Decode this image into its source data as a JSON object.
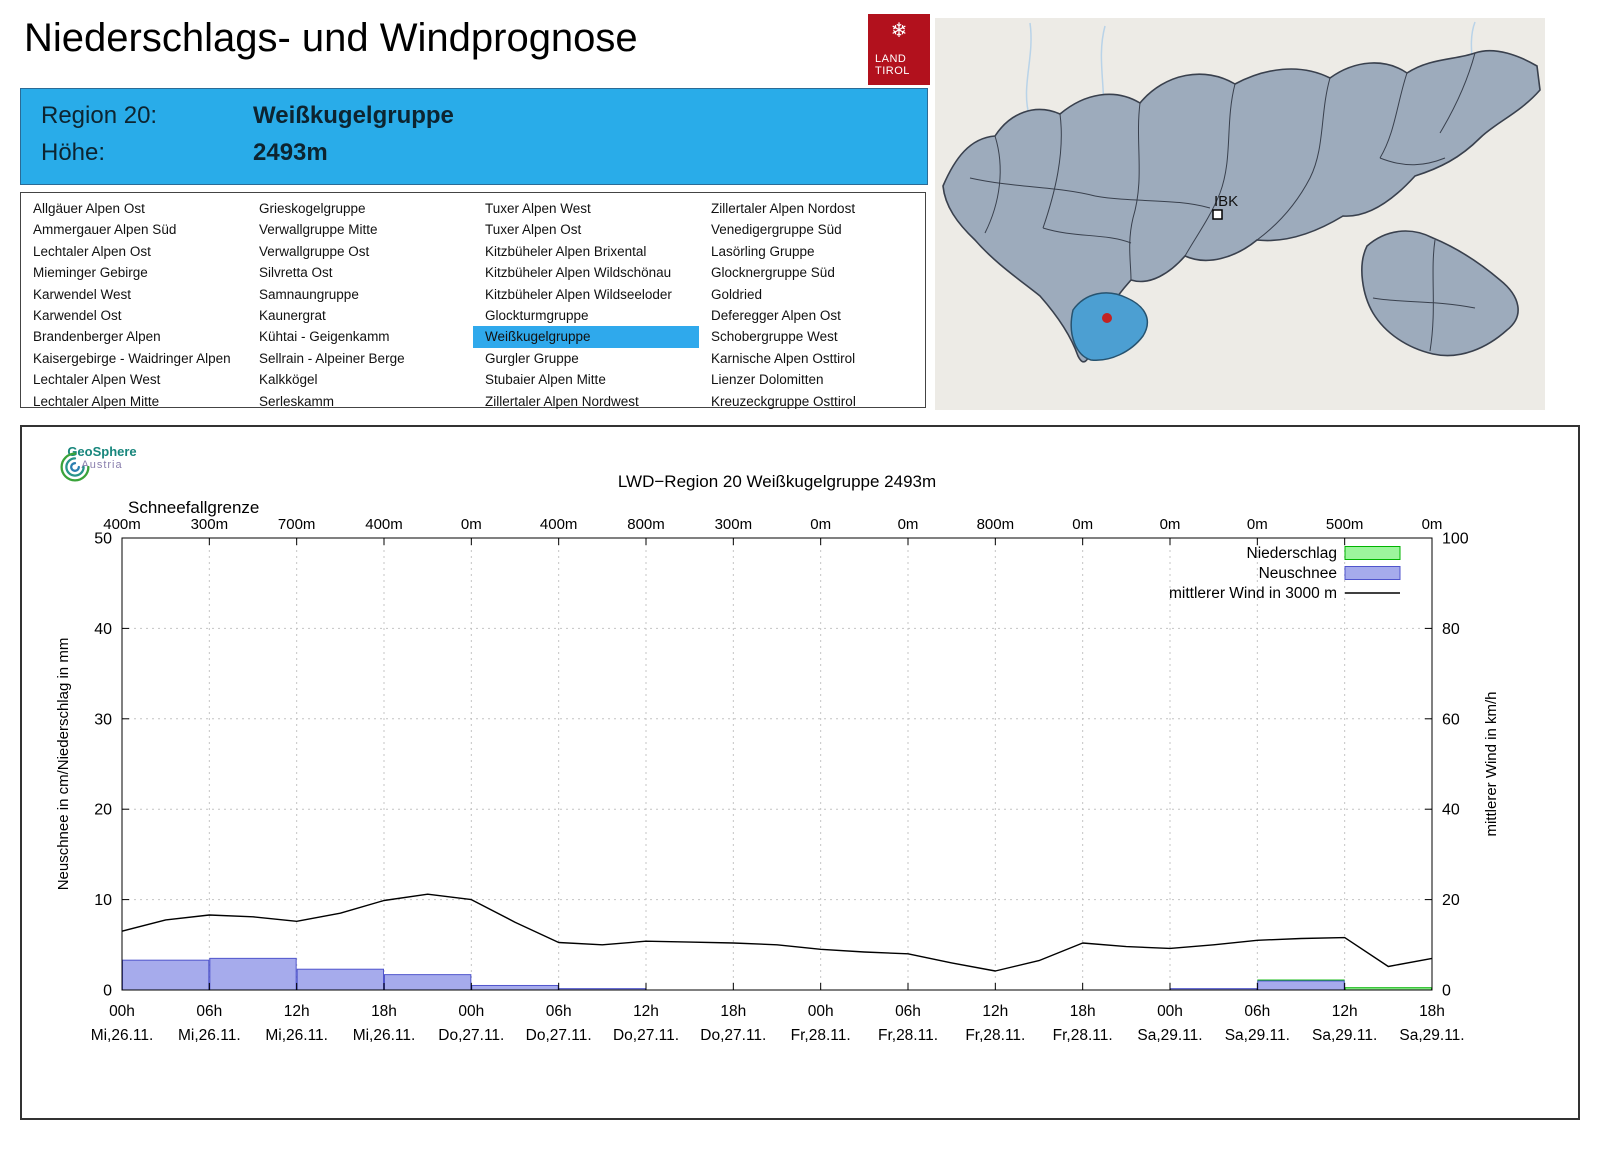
{
  "header": {
    "title": "Niederschlags- und Windprognose",
    "logo_flake": "❄",
    "logo_line1": "LAND",
    "logo_line2": "TIROL"
  },
  "map": {
    "ibk_label": "IBK",
    "highlight_color": "#4c9fd2"
  },
  "region_header": {
    "region_label": "Region 20:",
    "region_name": "Weißkugelgruppe",
    "altitude_label": "Höhe:",
    "altitude_value": "2493m"
  },
  "region_list": {
    "selected": "Weißkugelgruppe",
    "columns": [
      [
        "Allgäuer Alpen Ost",
        "Ammergauer Alpen Süd",
        "Lechtaler Alpen Ost",
        "Mieminger Gebirge",
        "Karwendel West",
        "Karwendel Ost",
        "Brandenberger Alpen",
        "Kaisergebirge - Waidringer Alpen",
        "Lechtaler Alpen West",
        "Lechtaler Alpen Mitte"
      ],
      [
        "Grieskogelgruppe",
        "Verwallgruppe Mitte",
        "Verwallgruppe Ost",
        "Silvretta Ost",
        "Samnaungruppe",
        "Kaunergrat",
        "Kühtai - Geigenkamm",
        "Sellrain - Alpeiner Berge",
        "Kalkkögel",
        "Serleskamm"
      ],
      [
        "Tuxer Alpen West",
        "Tuxer Alpen Ost",
        "Kitzbüheler Alpen Brixental",
        "Kitzbüheler Alpen Wildschönau",
        "Kitzbüheler Alpen Wildseeloder",
        "Glockturmgruppe",
        "Weißkugelgruppe",
        "Gurgler Gruppe",
        "Stubaier Alpen Mitte",
        "Zillertaler Alpen Nordwest"
      ],
      [
        "Zillertaler Alpen Nordost",
        "Venedigergruppe Süd",
        "Lasörling Gruppe",
        "Glocknergruppe Süd",
        "Goldried",
        "Deferegger Alpen Ost",
        "Schobergruppe West",
        "Karnische Alpen Osttirol",
        "Lienzer Dolomitten",
        "Kreuzeckgruppe Osttirol"
      ]
    ]
  },
  "geosphere": {
    "name": "GeoSphere",
    "sub": "Austria"
  },
  "chart_data": {
    "type": "bar",
    "title": "LWD−Region 20 Weißkugelgruppe 2493m",
    "snowline": {
      "label": "Schneefallgrenze",
      "values": [
        "400m",
        "300m",
        "700m",
        "400m",
        "0m",
        "400m",
        "800m",
        "300m",
        "0m",
        "0m",
        "800m",
        "0m",
        "0m",
        "0m",
        "500m",
        "0m"
      ]
    },
    "x": {
      "hours_span": 90,
      "tick_step_h": 6,
      "tick_hours": [
        "00h",
        "06h",
        "12h",
        "18h",
        "00h",
        "06h",
        "12h",
        "18h",
        "00h",
        "06h",
        "12h",
        "18h",
        "00h",
        "06h",
        "12h",
        "18h"
      ],
      "tick_days": [
        "Mi,26.11.",
        "Mi,26.11.",
        "Mi,26.11.",
        "Mi,26.11.",
        "Do,27.11.",
        "Do,27.11.",
        "Do,27.11.",
        "Do,27.11.",
        "Fr,28.11.",
        "Fr,28.11.",
        "Fr,28.11.",
        "Fr,28.11.",
        "Sa,29.11.",
        "Sa,29.11.",
        "Sa,29.11.",
        "Sa,29.11."
      ]
    },
    "axes": {
      "left_label": "Neuschnee in cm/Niederschlag in mm",
      "right_label": "mittlerer Wind in km/h",
      "left_range": [
        0,
        50
      ],
      "right_range": [
        0,
        100
      ],
      "left_ticks": [
        0,
        10,
        20,
        30,
        40,
        50
      ],
      "right_ticks": [
        0,
        20,
        40,
        60,
        80,
        100
      ],
      "grid": true
    },
    "legend": [
      {
        "label": "Niederschlag",
        "swatch": "box",
        "fill": "#9cf59c",
        "stroke": "#00b400"
      },
      {
        "label": "Neuschnee",
        "swatch": "box",
        "fill": "#a6abec",
        "stroke": "#5055cc"
      },
      {
        "label": "mittlerer Wind in 3000 m",
        "swatch": "line",
        "stroke": "#000000"
      }
    ],
    "series": [
      {
        "name": "Niederschlag",
        "unit": "mm",
        "interval_h": 6,
        "values": [
          0,
          0,
          0,
          0,
          0,
          0,
          0,
          0,
          0,
          0,
          0,
          0,
          0.1,
          1.1,
          0.25
        ]
      },
      {
        "name": "Neuschnee",
        "unit": "cm",
        "interval_h": 6,
        "values": [
          3.3,
          3.5,
          2.3,
          1.7,
          0.5,
          0.15,
          0,
          0,
          0,
          0,
          0,
          0,
          0.15,
          1.0,
          0
        ]
      },
      {
        "name": "mittlerer Wind in 3000 m",
        "unit": "km/h",
        "interval_h": 3,
        "values": [
          13,
          15.5,
          16.6,
          16.2,
          15.2,
          17,
          19.8,
          21.2,
          20,
          15,
          10.5,
          10,
          10.8,
          10.6,
          10.4,
          10,
          9,
          8.4,
          8,
          6,
          4.2,
          6.5,
          10.4,
          9.6,
          9.2,
          10,
          11,
          11.4,
          11.6,
          5.2,
          7
        ]
      }
    ]
  }
}
